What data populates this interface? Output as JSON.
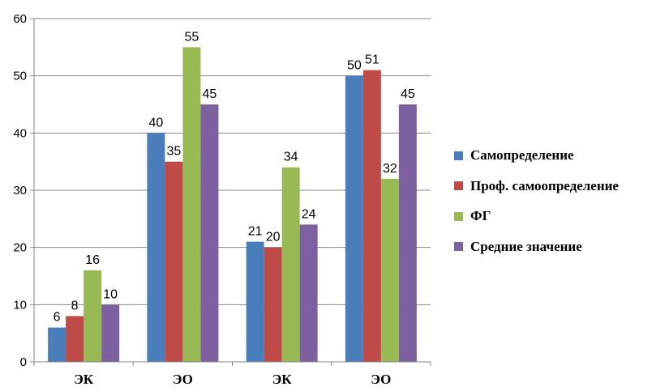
{
  "chart_data": {
    "type": "bar",
    "categories": [
      "ЭК",
      "ЭО",
      "ЭК",
      "ЭО"
    ],
    "series": [
      {
        "name": "Самопределение",
        "color": "#4A7EBB",
        "values": [
          6,
          40,
          21,
          50
        ]
      },
      {
        "name": "Проф. самоопределение",
        "color": "#BE4B48",
        "values": [
          8,
          35,
          20,
          51
        ]
      },
      {
        "name": "ФГ",
        "color": "#98B954",
        "values": [
          16,
          55,
          34,
          32
        ]
      },
      {
        "name": "Средние значение",
        "color": "#7D60A0",
        "values": [
          10,
          45,
          24,
          45
        ]
      }
    ],
    "ylim": [
      0,
      60
    ],
    "yticks": [
      0,
      10,
      20,
      30,
      40,
      50,
      60
    ],
    "grid": true,
    "legend_position": "right"
  }
}
